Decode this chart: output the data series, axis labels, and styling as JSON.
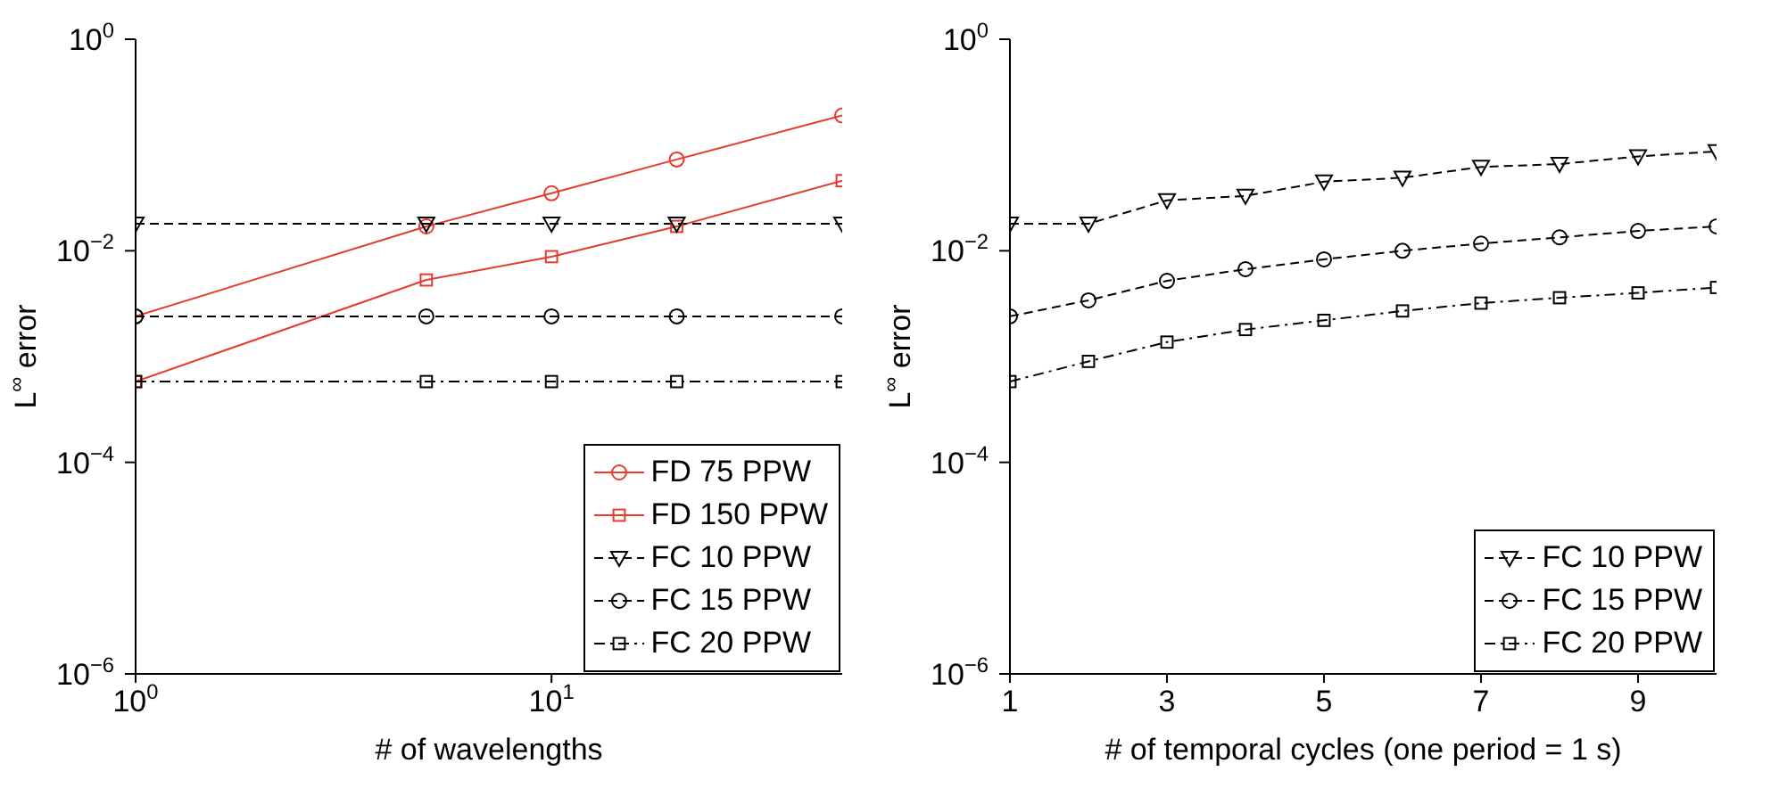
{
  "chart_data": [
    {
      "type": "line",
      "xlabel": "# of wavelengths",
      "ylabel": "L$^{∞}$ error",
      "log": "xy",
      "x": [
        1,
        5,
        10,
        20,
        50
      ],
      "xlim": [
        1,
        50
      ],
      "xticks": [
        {
          "value": 1,
          "label": "10$^{0}$"
        },
        {
          "value": 10,
          "label": "10$^{1}$"
        }
      ],
      "ylim": [
        1e-06,
        1
      ],
      "yticks": [
        {
          "value": 1e-06,
          "label": "10$^{−6}$"
        },
        {
          "value": 0.0001,
          "label": "10$^{−4}$"
        },
        {
          "value": 0.01,
          "label": "10$^{−2}$"
        },
        {
          "value": 1,
          "label": "10$^{0}$"
        }
      ],
      "legend": "bottom right",
      "series": [
        {
          "name": "FD 75 PPW",
          "color": "#e8392d",
          "marker": "circle",
          "line_style": "solid",
          "values": [
            0.0024,
            0.017,
            0.035,
            0.073,
            0.19
          ]
        },
        {
          "name": "FD 150 PPW",
          "color": "#e8392d",
          "marker": "square",
          "line_style": "solid",
          "values": [
            0.00058,
            0.0053,
            0.0088,
            0.017,
            0.046
          ]
        },
        {
          "name": "FC 10 PPW",
          "color": "#000000",
          "marker": "triangle",
          "line_style": "dashed",
          "values": [
            0.018,
            0.018,
            0.018,
            0.018,
            0.018
          ]
        },
        {
          "name": "FC 15 PPW",
          "color": "#000000",
          "marker": "circle",
          "line_style": "dashed",
          "values": [
            0.0024,
            0.0024,
            0.0024,
            0.0024,
            0.0024
          ]
        },
        {
          "name": "FC 20 PPW",
          "color": "#000000",
          "marker": "square",
          "line_style": "dashdot",
          "values": [
            0.00058,
            0.00058,
            0.00058,
            0.00058,
            0.00058
          ]
        }
      ]
    },
    {
      "type": "line",
      "xlabel": "# of temporal cycles (one period = 1 s)",
      "ylabel": "L$^{∞}$ error",
      "log": "y",
      "x": [
        1,
        2,
        3,
        4,
        5,
        6,
        7,
        8,
        9,
        10
      ],
      "xlim": [
        1,
        10
      ],
      "xticks": [
        1,
        3,
        5,
        7,
        9
      ],
      "ylim": [
        1e-06,
        1
      ],
      "yticks": [
        {
          "value": 1e-06,
          "label": "10$^{−6}$"
        },
        {
          "value": 0.0001,
          "label": "10$^{−4}$"
        },
        {
          "value": 0.01,
          "label": "10$^{−2}$"
        },
        {
          "value": 1,
          "label": "10$^{0}$"
        }
      ],
      "legend": "bottom right",
      "series": [
        {
          "name": "FC 10 PPW",
          "color": "#000000",
          "marker": "triangle",
          "line_style": "dashed",
          "values": [
            0.018,
            0.018,
            0.03,
            0.033,
            0.045,
            0.049,
            0.062,
            0.066,
            0.078,
            0.087
          ]
        },
        {
          "name": "FC 15 PPW",
          "color": "#000000",
          "marker": "circle",
          "line_style": "dashed",
          "values": [
            0.0024,
            0.0034,
            0.0052,
            0.0067,
            0.0083,
            0.01,
            0.0117,
            0.0134,
            0.0154,
            0.017
          ]
        },
        {
          "name": "FC 20 PPW",
          "color": "#000000",
          "marker": "square",
          "line_style": "dashdot",
          "values": [
            0.00058,
            0.0009,
            0.00137,
            0.0018,
            0.0022,
            0.0027,
            0.0032,
            0.0036,
            0.004,
            0.0045
          ]
        }
      ]
    }
  ]
}
